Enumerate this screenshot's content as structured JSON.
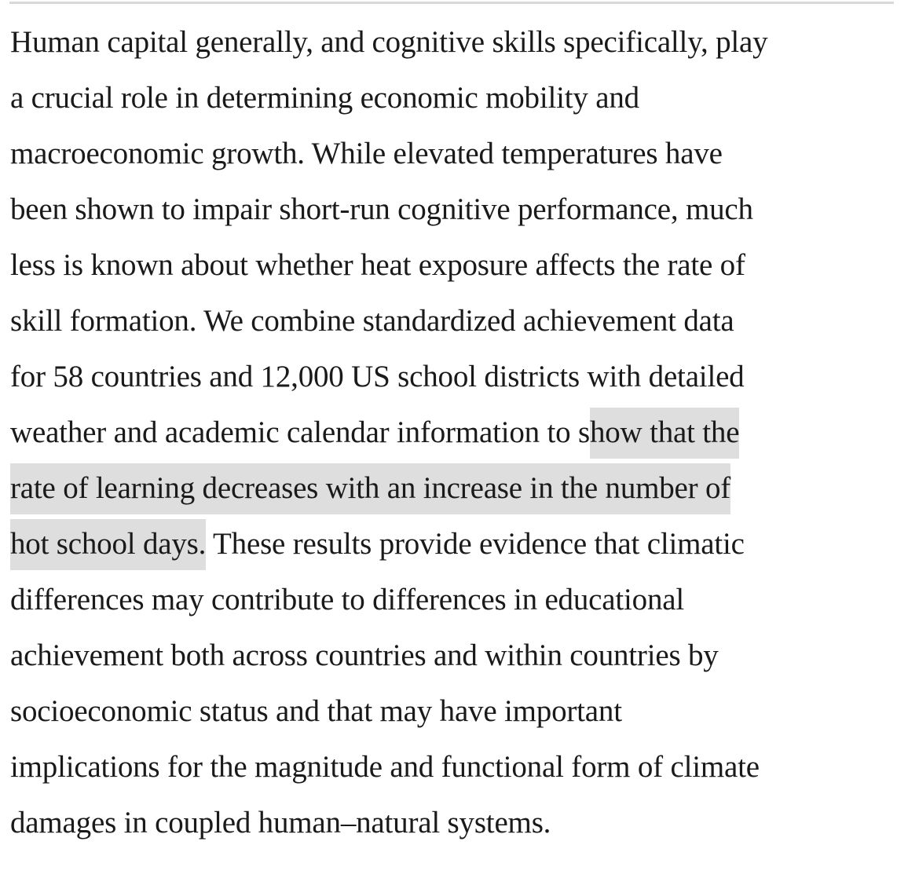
{
  "abstract": {
    "highlight_color": "#dedede",
    "lines": {
      "l1": "Human capital generally, and cognitive skills specifically, play",
      "l2": "a crucial role in determining economic mobility and",
      "l3": "macroeconomic growth. While elevated temperatures have",
      "l4": "been shown to impair short-run cognitive performance, much",
      "l5": "less is known about whether heat exposure affects the rate of",
      "l6": "skill formation. We combine standardized achievement data",
      "l7": "for 58 countries and 12,000 US school districts with detailed",
      "l8_pre": "weather and academic calendar information to s",
      "l8_hl": "how that the",
      "l9_hl": "rate of learning decreases with an increase in the number of",
      "l10_hl": "hot school days.",
      "l10_post": " These results provide evidence that climatic",
      "l11": "differences may contribute to differences in educational",
      "l12": "achievement both across countries and within countries by",
      "l13": "socioeconomic status and that may have important",
      "l14": "implications for the magnitude and functional form of climate",
      "l15": "damages in coupled human–natural systems."
    }
  }
}
